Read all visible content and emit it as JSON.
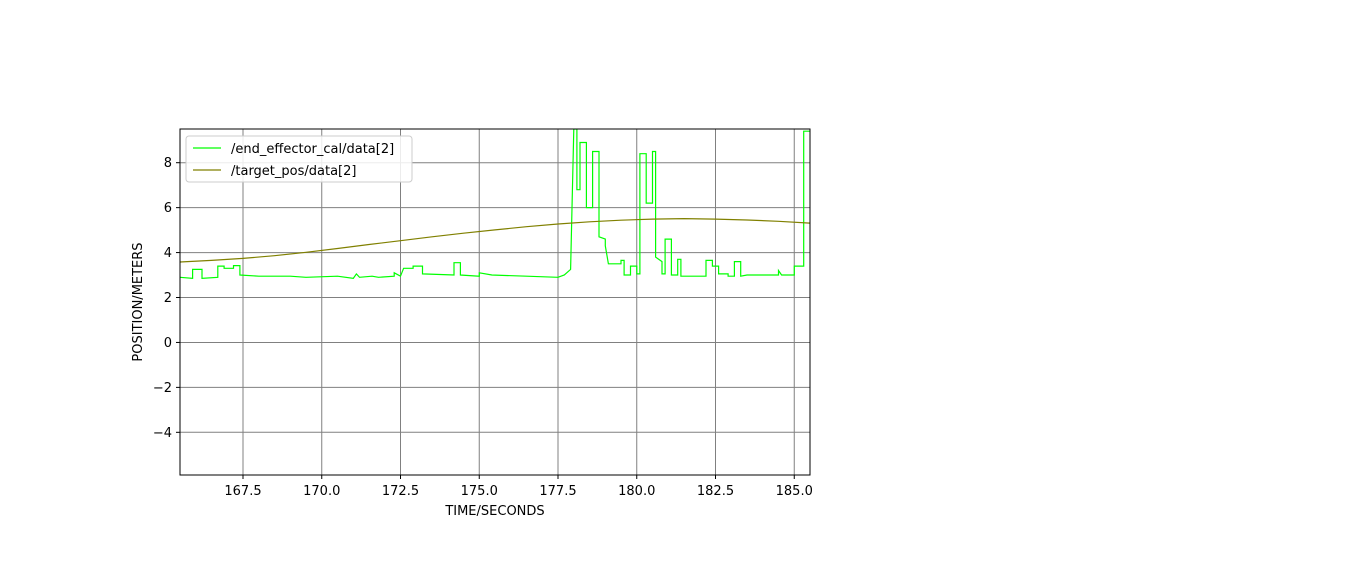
{
  "chart_data": {
    "type": "line",
    "title": "",
    "xlabel": "TIME/SECONDS",
    "ylabel": "POSITION/METERS",
    "xlim": [
      165.5,
      185.5
    ],
    "ylim": [
      -5.9,
      9.5
    ],
    "xticks": [
      "167.5",
      "170.0",
      "172.5",
      "175.0",
      "177.5",
      "180.0",
      "182.5",
      "185.0"
    ],
    "yticks": [
      "−4",
      "−2",
      "0",
      "2",
      "4",
      "6",
      "8"
    ],
    "grid": true,
    "legend_position": "top-left",
    "series": [
      {
        "name": "/end_effector_cal/data[2]",
        "color": "#00ff00",
        "style": "step",
        "points": [
          [
            165.5,
            2.9
          ],
          [
            165.9,
            2.85
          ],
          [
            165.9,
            3.25
          ],
          [
            166.2,
            3.25
          ],
          [
            166.2,
            2.85
          ],
          [
            166.7,
            2.9
          ],
          [
            166.7,
            3.4
          ],
          [
            166.9,
            3.4
          ],
          [
            166.9,
            3.3
          ],
          [
            167.2,
            3.3
          ],
          [
            167.2,
            3.42
          ],
          [
            167.4,
            3.42
          ],
          [
            167.4,
            3.0
          ],
          [
            168.0,
            2.95
          ],
          [
            169.0,
            2.95
          ],
          [
            169.5,
            2.9
          ],
          [
            170.5,
            2.95
          ],
          [
            171.0,
            2.85
          ],
          [
            171.1,
            3.05
          ],
          [
            171.2,
            2.9
          ],
          [
            171.6,
            2.95
          ],
          [
            171.8,
            2.9
          ],
          [
            172.3,
            2.95
          ],
          [
            172.3,
            3.1
          ],
          [
            172.5,
            2.95
          ],
          [
            172.6,
            3.3
          ],
          [
            172.9,
            3.3
          ],
          [
            172.9,
            3.4
          ],
          [
            173.2,
            3.4
          ],
          [
            173.2,
            3.05
          ],
          [
            174.2,
            3.0
          ],
          [
            174.2,
            3.55
          ],
          [
            174.4,
            3.55
          ],
          [
            174.4,
            3.0
          ],
          [
            175.0,
            2.95
          ],
          [
            175.0,
            3.1
          ],
          [
            175.4,
            3.0
          ],
          [
            176.5,
            2.95
          ],
          [
            177.5,
            2.9
          ],
          [
            177.7,
            3.0
          ],
          [
            177.9,
            3.25
          ],
          [
            178.0,
            9.5
          ],
          [
            178.1,
            9.5
          ],
          [
            178.1,
            6.8
          ],
          [
            178.2,
            6.8
          ],
          [
            178.2,
            8.9
          ],
          [
            178.4,
            8.9
          ],
          [
            178.4,
            6.0
          ],
          [
            178.6,
            6.0
          ],
          [
            178.6,
            8.5
          ],
          [
            178.8,
            8.5
          ],
          [
            178.8,
            4.7
          ],
          [
            179.0,
            4.6
          ],
          [
            179.0,
            4.3
          ],
          [
            179.1,
            3.5
          ],
          [
            179.5,
            3.5
          ],
          [
            179.5,
            3.65
          ],
          [
            179.6,
            3.65
          ],
          [
            179.6,
            3.0
          ],
          [
            179.8,
            3.0
          ],
          [
            179.8,
            3.4
          ],
          [
            180.0,
            3.4
          ],
          [
            180.0,
            3.05
          ],
          [
            180.1,
            3.05
          ],
          [
            180.1,
            8.4
          ],
          [
            180.3,
            8.4
          ],
          [
            180.3,
            6.2
          ],
          [
            180.5,
            6.2
          ],
          [
            180.5,
            8.5
          ],
          [
            180.6,
            8.5
          ],
          [
            180.6,
            3.8
          ],
          [
            180.8,
            3.6
          ],
          [
            180.8,
            3.05
          ],
          [
            180.9,
            3.05
          ],
          [
            180.9,
            4.6
          ],
          [
            181.1,
            4.6
          ],
          [
            181.1,
            3.0
          ],
          [
            181.3,
            3.0
          ],
          [
            181.3,
            3.7
          ],
          [
            181.4,
            3.7
          ],
          [
            181.4,
            2.95
          ],
          [
            182.2,
            2.95
          ],
          [
            182.2,
            3.65
          ],
          [
            182.4,
            3.65
          ],
          [
            182.4,
            3.4
          ],
          [
            182.6,
            3.4
          ],
          [
            182.6,
            3.05
          ],
          [
            182.9,
            3.05
          ],
          [
            182.9,
            2.95
          ],
          [
            183.1,
            2.95
          ],
          [
            183.1,
            3.6
          ],
          [
            183.3,
            3.6
          ],
          [
            183.3,
            2.95
          ],
          [
            183.5,
            3.0
          ],
          [
            184.5,
            3.0
          ],
          [
            184.5,
            3.2
          ],
          [
            184.6,
            3.0
          ],
          [
            185.0,
            3.0
          ],
          [
            185.0,
            3.4
          ],
          [
            185.3,
            3.4
          ],
          [
            185.3,
            9.4
          ],
          [
            185.5,
            9.4
          ]
        ]
      },
      {
        "name": "/target_pos/data[2]",
        "color": "#808000",
        "style": "line",
        "points": [
          [
            165.5,
            3.58
          ],
          [
            166.5,
            3.65
          ],
          [
            167.5,
            3.74
          ],
          [
            168.5,
            3.86
          ],
          [
            169.5,
            4.01
          ],
          [
            170.5,
            4.18
          ],
          [
            171.5,
            4.36
          ],
          [
            172.5,
            4.53
          ],
          [
            173.5,
            4.7
          ],
          [
            174.5,
            4.86
          ],
          [
            175.5,
            5.01
          ],
          [
            176.5,
            5.15
          ],
          [
            177.5,
            5.27
          ],
          [
            178.5,
            5.37
          ],
          [
            179.5,
            5.44
          ],
          [
            180.5,
            5.49
          ],
          [
            181.5,
            5.51
          ],
          [
            182.5,
            5.49
          ],
          [
            183.5,
            5.45
          ],
          [
            184.5,
            5.39
          ],
          [
            185.5,
            5.31
          ]
        ]
      }
    ]
  }
}
